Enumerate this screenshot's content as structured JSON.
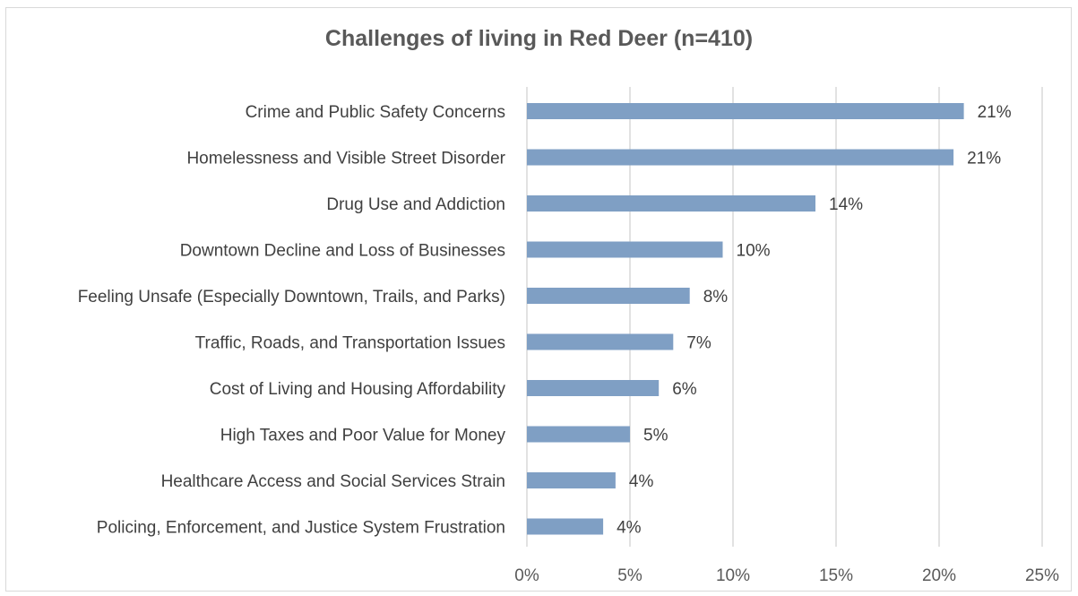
{
  "chart_data": {
    "type": "bar",
    "orientation": "horizontal",
    "title": "Challenges of living in Red Deer (n=410)",
    "xlabel": "",
    "ylabel": "",
    "categories": [
      "Crime and Public Safety Concerns",
      "Homelessness and Visible Street Disorder",
      "Drug Use and Addiction",
      "Downtown Decline and Loss of Businesses",
      "Feeling Unsafe (Especially Downtown, Trails, and Parks)",
      "Traffic, Roads, and Transportation Issues",
      "Cost of Living and Housing Affordability",
      "High Taxes and Poor Value for Money",
      "Healthcare Access and Social Services Strain",
      "Policing, Enforcement, and Justice System Frustration"
    ],
    "values": [
      21.2,
      20.7,
      14.0,
      9.5,
      7.9,
      7.1,
      6.4,
      5.0,
      4.3,
      3.7
    ],
    "data_labels": [
      "21%",
      "21%",
      "14%",
      "10%",
      "8%",
      "7%",
      "6%",
      "5%",
      "4%",
      "4%"
    ],
    "xlim": [
      0,
      25
    ],
    "ticks": [
      0,
      5,
      10,
      15,
      20,
      25
    ],
    "tick_labels": [
      "0%",
      "5%",
      "10%",
      "15%",
      "20%",
      "25%"
    ],
    "grid": "vertical",
    "legend": "none",
    "bar_color": "#7f9fc4",
    "gridline_color": "#d9d9d9"
  }
}
